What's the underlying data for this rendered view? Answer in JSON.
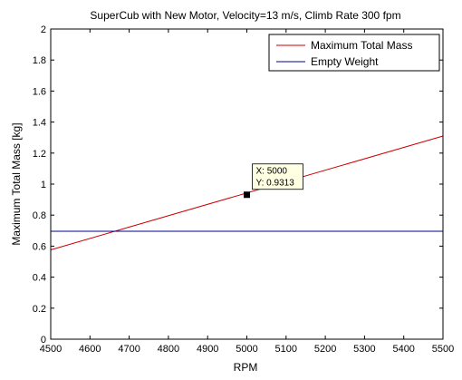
{
  "chart_data": {
    "type": "line",
    "title": "SuperCub with New Motor, Velocity=13 m/s, Climb Rate 300 fpm",
    "xlabel": "RPM",
    "ylabel": "Maximum Total Mass [kg]",
    "xlim": [
      4500,
      5500
    ],
    "ylim": [
      0,
      2
    ],
    "xticks": [
      4500,
      4600,
      4700,
      4800,
      4900,
      5000,
      5100,
      5200,
      5300,
      5400,
      5500
    ],
    "yticks": [
      0,
      0.2,
      0.4,
      0.6,
      0.8,
      1,
      1.2,
      1.4,
      1.6,
      1.8,
      2
    ],
    "grid": false,
    "legend_position": "top-right",
    "series": [
      {
        "name": "Maximum Total Mass",
        "color": "#cc0000",
        "x": [
          4500,
          5500
        ],
        "y": [
          0.576,
          1.31
        ]
      },
      {
        "name": "Empty Weight",
        "color": "#00008b",
        "x": [
          4500,
          5500
        ],
        "y": [
          0.696,
          0.696
        ]
      }
    ],
    "datatip": {
      "x": 5000,
      "y": 0.9313,
      "x_text": "X: 5000",
      "y_text": "Y: 0.9313"
    }
  }
}
